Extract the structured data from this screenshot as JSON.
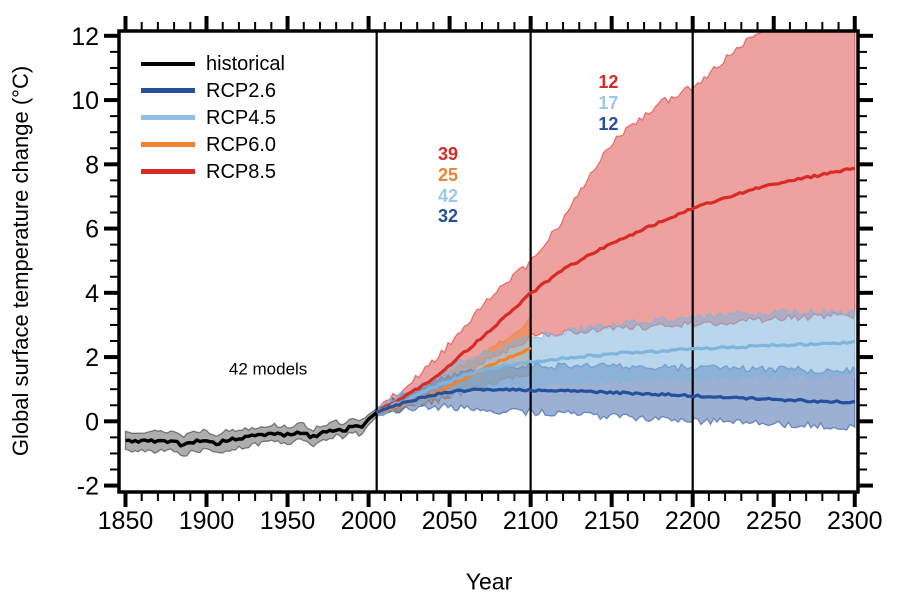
{
  "legend": {
    "items": [
      {
        "label": "historical",
        "color": "#000000"
      },
      {
        "label": "RCP2.6",
        "color": "#24509e"
      },
      {
        "label": "RCP4.5",
        "color": "#8fbfe2"
      },
      {
        "label": "RCP6.0",
        "color": "#ee8431"
      },
      {
        "label": "RCP8.5",
        "color": "#d92b26"
      }
    ]
  },
  "chart_data": {
    "type": "line",
    "xlabel": "Year",
    "ylabel": "Global surface temperature change (°C)",
    "xlim": [
      1846,
      2302
    ],
    "ylim": [
      -2.2,
      12.15
    ],
    "x_major_ticks": [
      1850,
      1900,
      1950,
      2000,
      2050,
      2100,
      2150,
      2200,
      2250,
      2300
    ],
    "x_minor_step": 10,
    "y_major_ticks": [
      -2,
      0,
      2,
      4,
      6,
      8,
      10,
      12
    ],
    "y_minor_step": 0.5,
    "grid": false,
    "reference_lines_x": [
      2005,
      2100,
      2200
    ],
    "note": {
      "label": "42 models",
      "x": 1938,
      "y": 1.62
    },
    "model_counts": [
      {
        "x": 2049,
        "rows": [
          {
            "label": "39",
            "series": "RCP8.5",
            "color": "#d92b26",
            "y": 8.32
          },
          {
            "label": "25",
            "series": "RCP6.0",
            "color": "#ee8431",
            "y": 7.67
          },
          {
            "label": "42",
            "series": "RCP4.5",
            "color": "#9cc8e8",
            "y": 7.02
          },
          {
            "label": "32",
            "series": "RCP2.6",
            "color": "#24509e",
            "y": 6.4
          }
        ]
      },
      {
        "x": 2148,
        "rows": [
          {
            "label": "12",
            "series": "RCP8.5",
            "color": "#d92b26",
            "y": 10.55
          },
          {
            "label": "17",
            "series": "RCP4.5",
            "color": "#9cc8e8",
            "y": 9.9
          },
          {
            "label": "12",
            "series": "RCP2.6",
            "color": "#24509e",
            "y": 9.27
          }
        ]
      }
    ],
    "series": [
      {
        "name": "historical",
        "color": "#000000",
        "band_alpha": 0.32,
        "x": [
          1850,
          1860,
          1870,
          1880,
          1885,
          1890,
          1900,
          1905,
          1910,
          1920,
          1930,
          1940,
          1950,
          1960,
          1965,
          1970,
          1980,
          1985,
          1990,
          1995,
          2000,
          2005
        ],
        "y": [
          -0.62,
          -0.6,
          -0.63,
          -0.6,
          -0.78,
          -0.64,
          -0.57,
          -0.72,
          -0.62,
          -0.54,
          -0.45,
          -0.38,
          -0.42,
          -0.34,
          -0.52,
          -0.37,
          -0.24,
          -0.32,
          -0.12,
          -0.22,
          0.05,
          0.28
        ],
        "lo": [
          -0.94,
          -0.92,
          -0.95,
          -0.9,
          -1.12,
          -0.96,
          -0.87,
          -1.05,
          -0.93,
          -0.82,
          -0.72,
          -0.64,
          -0.67,
          -0.58,
          -0.78,
          -0.6,
          -0.46,
          -0.54,
          -0.32,
          -0.42,
          -0.12,
          0.16
        ],
        "hi": [
          -0.32,
          -0.3,
          -0.33,
          -0.3,
          -0.47,
          -0.34,
          -0.27,
          -0.42,
          -0.32,
          -0.26,
          -0.18,
          -0.11,
          -0.16,
          -0.09,
          -0.27,
          -0.13,
          -0.02,
          -0.11,
          0.07,
          -0.03,
          0.2,
          0.4
        ]
      },
      {
        "name": "RCP2.6",
        "color": "#24509e",
        "band_alpha": 0.45,
        "x": [
          2005,
          2010,
          2020,
          2030,
          2040,
          2050,
          2060,
          2080,
          2100,
          2150,
          2200,
          2250,
          2300
        ],
        "y": [
          0.28,
          0.38,
          0.55,
          0.7,
          0.82,
          0.92,
          0.97,
          1.0,
          0.97,
          0.9,
          0.8,
          0.68,
          0.58
        ],
        "lo": [
          0.16,
          0.24,
          0.34,
          0.42,
          0.45,
          0.43,
          0.38,
          0.32,
          0.28,
          0.15,
          0.02,
          -0.08,
          -0.18
        ],
        "hi": [
          0.4,
          0.53,
          0.76,
          0.98,
          1.2,
          1.42,
          1.56,
          1.68,
          1.72,
          1.7,
          1.68,
          1.62,
          1.58
        ]
      },
      {
        "name": "RCP4.5",
        "color": "#7fb5dd",
        "band_alpha": 0.55,
        "x": [
          2005,
          2010,
          2020,
          2030,
          2040,
          2050,
          2060,
          2080,
          2100,
          2150,
          2200,
          2250,
          2300
        ],
        "y": [
          0.28,
          0.4,
          0.6,
          0.82,
          1.05,
          1.25,
          1.45,
          1.7,
          1.86,
          2.1,
          2.25,
          2.36,
          2.46
        ],
        "lo": [
          0.16,
          0.27,
          0.42,
          0.58,
          0.72,
          0.85,
          0.95,
          1.05,
          1.12,
          1.26,
          1.36,
          1.4,
          1.42
        ],
        "hi": [
          0.4,
          0.55,
          0.8,
          1.08,
          1.38,
          1.66,
          1.92,
          2.28,
          2.62,
          3.0,
          3.25,
          3.38,
          3.45
        ]
      },
      {
        "name": "RCP6.0",
        "color": "#ee8431",
        "band_alpha": 0.5,
        "x": [
          2005,
          2010,
          2020,
          2030,
          2040,
          2050,
          2060,
          2070,
          2080,
          2090,
          2100
        ],
        "y": [
          0.28,
          0.36,
          0.52,
          0.68,
          0.88,
          1.1,
          1.35,
          1.6,
          1.85,
          2.05,
          2.28
        ],
        "lo": [
          0.16,
          0.25,
          0.36,
          0.48,
          0.62,
          0.78,
          0.94,
          1.1,
          1.24,
          1.35,
          1.46
        ],
        "hi": [
          0.4,
          0.5,
          0.7,
          0.92,
          1.18,
          1.46,
          1.76,
          2.1,
          2.46,
          2.8,
          3.12
        ]
      },
      {
        "name": "RCP8.5",
        "color": "#d92b26",
        "band_alpha": 0.44,
        "x": [
          2005,
          2010,
          2020,
          2030,
          2040,
          2050,
          2060,
          2070,
          2080,
          2090,
          2100,
          2120,
          2150,
          2180,
          2200,
          2230,
          2250,
          2280,
          2300
        ],
        "y": [
          0.28,
          0.45,
          0.7,
          1.0,
          1.35,
          1.75,
          2.18,
          2.62,
          3.06,
          3.52,
          3.98,
          4.72,
          5.55,
          6.2,
          6.62,
          7.12,
          7.38,
          7.68,
          7.88
        ],
        "lo": [
          0.16,
          0.3,
          0.5,
          0.72,
          0.96,
          1.22,
          1.52,
          1.8,
          2.08,
          2.35,
          2.62,
          2.76,
          2.9,
          2.96,
          3.02,
          3.12,
          3.2,
          3.26,
          3.3
        ],
        "hi": [
          0.4,
          0.6,
          0.95,
          1.36,
          1.86,
          2.42,
          3.0,
          3.62,
          4.16,
          4.56,
          4.92,
          6.3,
          8.7,
          9.9,
          10.4,
          11.7,
          12.4,
          12.6,
          12.7
        ]
      }
    ]
  }
}
